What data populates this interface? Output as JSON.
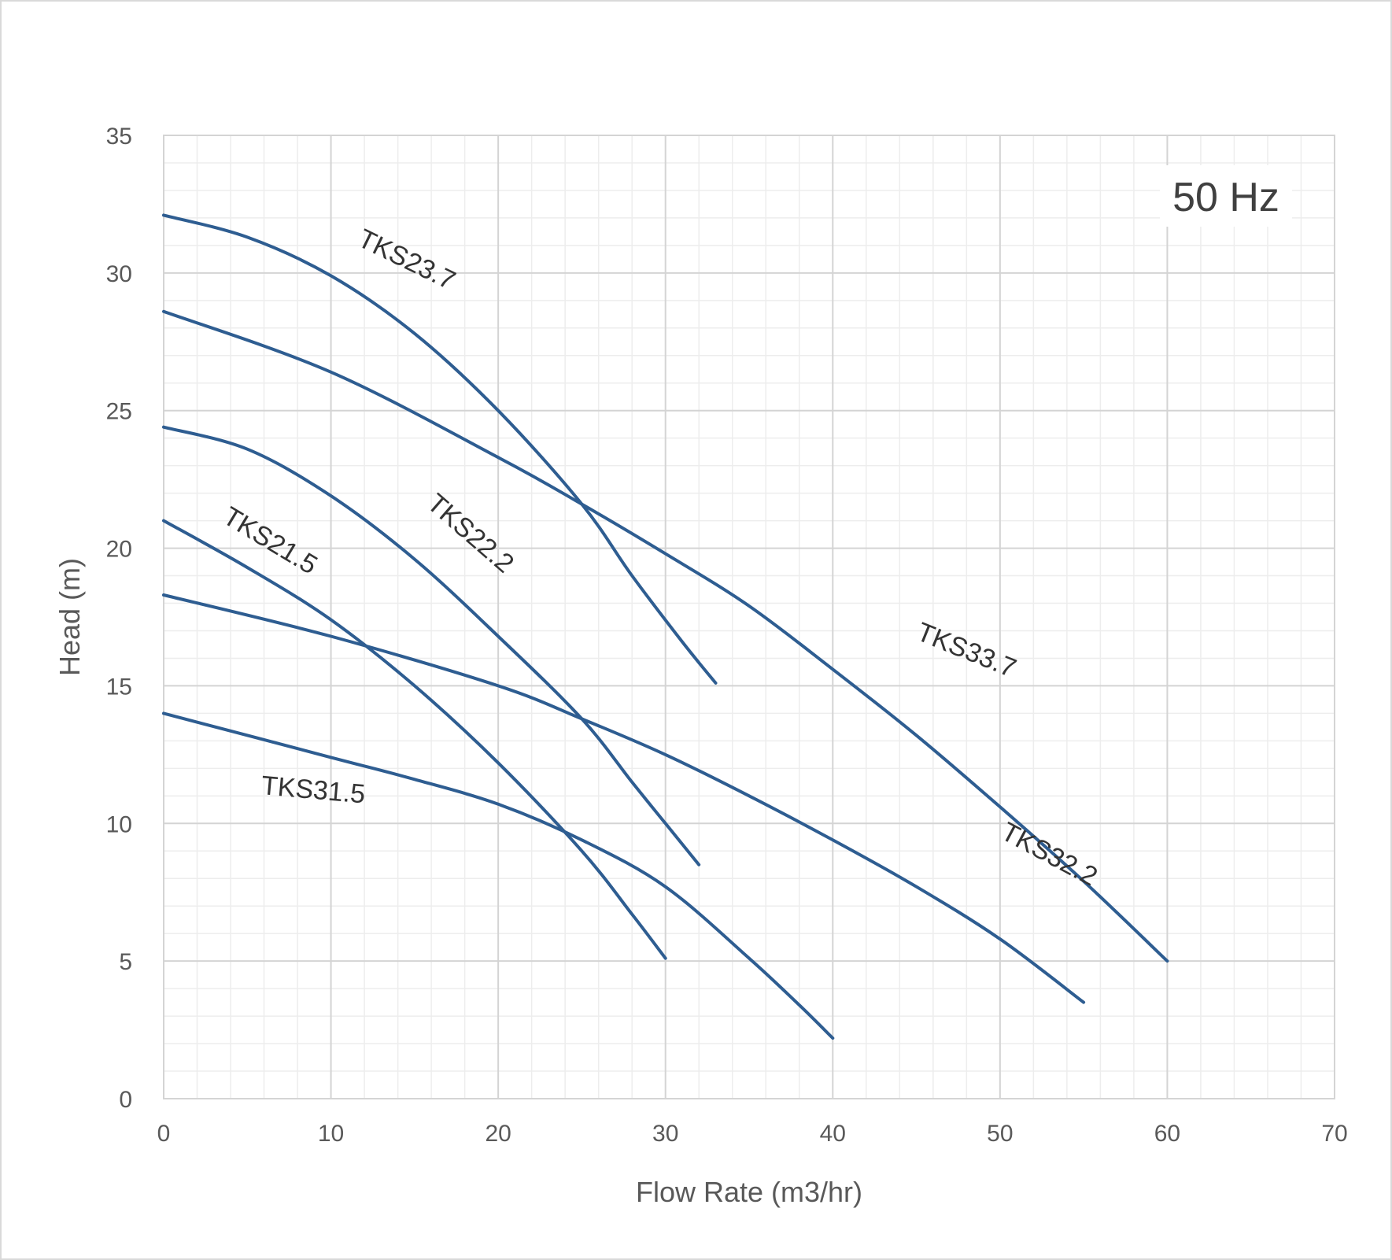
{
  "chart_data": {
    "type": "line",
    "title": "",
    "annotation": "50 Hz",
    "xlabel": "Flow Rate (m3/hr)",
    "ylabel": "Head (m)",
    "xlim": [
      0,
      70
    ],
    "ylim": [
      0,
      35
    ],
    "x_major_step": 10,
    "y_major_step": 5,
    "x_minor_step": 2,
    "y_minor_step": 1,
    "grid": true,
    "legend": "none",
    "line_color": "#2e5d91",
    "series": [
      {
        "name": "TKS23.7",
        "points": [
          [
            0,
            32.1
          ],
          [
            5,
            31.3
          ],
          [
            10,
            29.9
          ],
          [
            15,
            27.8
          ],
          [
            20,
            25.0
          ],
          [
            25,
            21.6
          ],
          [
            28,
            19.0
          ],
          [
            31,
            16.6
          ],
          [
            33,
            15.1
          ]
        ]
      },
      {
        "name": "TKS33.7",
        "points": [
          [
            0,
            28.6
          ],
          [
            10,
            26.4
          ],
          [
            20,
            23.3
          ],
          [
            25,
            21.6
          ],
          [
            30,
            19.8
          ],
          [
            35,
            17.9
          ],
          [
            40,
            15.6
          ],
          [
            45,
            13.2
          ],
          [
            50,
            10.6
          ],
          [
            55,
            7.9
          ],
          [
            60,
            5.0
          ]
        ]
      },
      {
        "name": "TKS22.2",
        "points": [
          [
            0,
            24.4
          ],
          [
            5,
            23.6
          ],
          [
            10,
            21.9
          ],
          [
            15,
            19.6
          ],
          [
            20,
            16.8
          ],
          [
            25,
            13.8
          ],
          [
            28,
            11.5
          ],
          [
            30,
            10.0
          ],
          [
            32,
            8.5
          ]
        ]
      },
      {
        "name": "TKS21.5",
        "points": [
          [
            0,
            21.0
          ],
          [
            5,
            19.3
          ],
          [
            10,
            17.4
          ],
          [
            15,
            15.0
          ],
          [
            20,
            12.2
          ],
          [
            25,
            9.0
          ],
          [
            28,
            6.7
          ],
          [
            30,
            5.1
          ]
        ]
      },
      {
        "name": "TKS32.2",
        "points": [
          [
            0,
            18.3
          ],
          [
            10,
            16.8
          ],
          [
            20,
            15.0
          ],
          [
            25,
            13.8
          ],
          [
            30,
            12.5
          ],
          [
            35,
            11.0
          ],
          [
            40,
            9.4
          ],
          [
            45,
            7.7
          ],
          [
            50,
            5.8
          ],
          [
            55,
            3.5
          ]
        ]
      },
      {
        "name": "TKS31.5",
        "points": [
          [
            0,
            14.0
          ],
          [
            10,
            12.4
          ],
          [
            15,
            11.6
          ],
          [
            20,
            10.7
          ],
          [
            25,
            9.4
          ],
          [
            30,
            7.7
          ],
          [
            35,
            5.1
          ],
          [
            38,
            3.4
          ],
          [
            40,
            2.2
          ]
        ]
      }
    ],
    "curve_labels": [
      {
        "text": "TKS23.7",
        "x": 14.3,
        "y": 30.2,
        "angle": 26
      },
      {
        "text": "TKS33.7",
        "x": 47.8,
        "y": 16.0,
        "angle": 22
      },
      {
        "text": "TKS22.2",
        "x": 18.0,
        "y": 20.3,
        "angle": 41
      },
      {
        "text": "TKS21.5",
        "x": 6.1,
        "y": 20.0,
        "angle": 31
      },
      {
        "text": "TKS32.2",
        "x": 52.7,
        "y": 8.6,
        "angle": 28
      },
      {
        "text": "TKS31.5",
        "x": 8.9,
        "y": 10.9,
        "angle": 5
      }
    ]
  }
}
